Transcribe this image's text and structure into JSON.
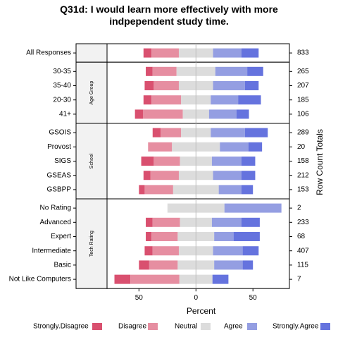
{
  "chart_data": {
    "type": "bar",
    "subtype": "diverging-stacked-likert",
    "title_lines": [
      "Q31d: I would learn more effectively with more",
      "indpependent study time."
    ],
    "xlabel": "Percent",
    "right_axis_label": "Row Count Totals",
    "x_ticks": [
      50,
      0,
      50
    ],
    "xlim": [
      -78,
      82
    ],
    "levels": [
      "Strongly.Disagree",
      "Disagree",
      "Neutral",
      "Agree",
      "Strongly.Agree"
    ],
    "colors": {
      "Strongly.Disagree": "#d9506f",
      "Disagree": "#e68ea1",
      "Neutral": "#dcdcdc",
      "Agree": "#949ee2",
      "Strongly.Agree": "#6573de"
    },
    "panels": [
      {
        "strip": "",
        "rows": [
          {
            "label": "All Responses",
            "total": "833",
            "values": [
              7,
              24,
              30,
              25,
              15
            ]
          }
        ]
      },
      {
        "strip": "Age Group",
        "rows": [
          {
            "label": "30-35",
            "total": "265",
            "values": [
              6,
              21,
              34,
              28,
              14
            ]
          },
          {
            "label": "35-40",
            "total": "207",
            "values": [
              8,
              22,
              30,
              28,
              12
            ]
          },
          {
            "label": "20-30",
            "total": "185",
            "values": [
              7,
              26,
              26,
              24,
              20
            ]
          },
          {
            "label": "41+",
            "total": "106",
            "values": [
              7,
              35,
              23,
              24,
              11
            ]
          }
        ]
      },
      {
        "strip": "School",
        "rows": [
          {
            "label": "GSOIS",
            "total": "289",
            "values": [
              7,
              18,
              26,
              30,
              20
            ]
          },
          {
            "label": "Provost",
            "total": "20",
            "values": [
              0,
              21,
              42,
              25,
              12
            ]
          },
          {
            "label": "SIGS",
            "total": "158",
            "values": [
              11,
              23,
              28,
              26,
              12
            ]
          },
          {
            "label": "GSEAS",
            "total": "212",
            "values": [
              6,
              25,
              30,
              25,
              12
            ]
          },
          {
            "label": "GSBPP",
            "total": "153",
            "values": [
              5,
              25,
              40,
              20,
              10
            ]
          }
        ]
      },
      {
        "strip": "Tech Rating",
        "rows": [
          {
            "label": "No Rating",
            "total": "2",
            "values": [
              0,
              0,
              50,
              50,
              0
            ]
          },
          {
            "label": "Advanced",
            "total": "233",
            "values": [
              6,
              24,
              28,
              26,
              16
            ]
          },
          {
            "label": "Expert",
            "total": "68",
            "values": [
              5,
              23,
              32,
              17,
              23
            ]
          },
          {
            "label": "Intermediate",
            "total": "407",
            "values": [
              7,
              23,
              30,
              26,
              14
            ]
          },
          {
            "label": "Basic",
            "total": "115",
            "values": [
              9,
              25,
              32,
              25,
              9
            ]
          },
          {
            "label": "Not Like Computers",
            "total": "7",
            "values": [
              14,
              43,
              29,
              0,
              14
            ]
          }
        ]
      }
    ]
  }
}
